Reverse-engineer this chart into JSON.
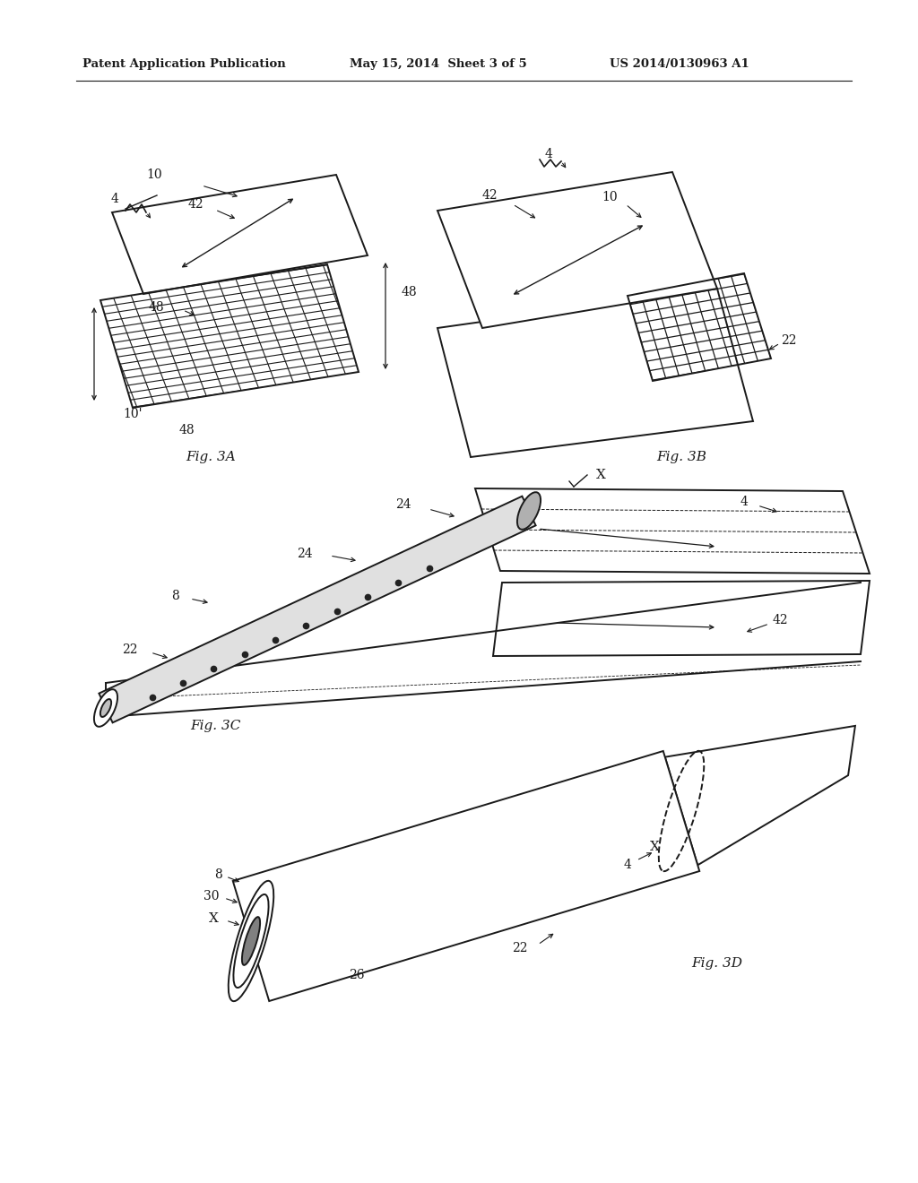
{
  "background_color": "#ffffff",
  "header_left": "Patent Application Publication",
  "header_mid": "May 15, 2014  Sheet 3 of 5",
  "header_right": "US 2014/0130963 A1",
  "fig3a_label": "Fig. 3A",
  "fig3b_label": "Fig. 3B",
  "fig3c_label": "Fig. 3C",
  "fig3d_label": "Fig. 3D",
  "line_color": "#1a1a1a"
}
